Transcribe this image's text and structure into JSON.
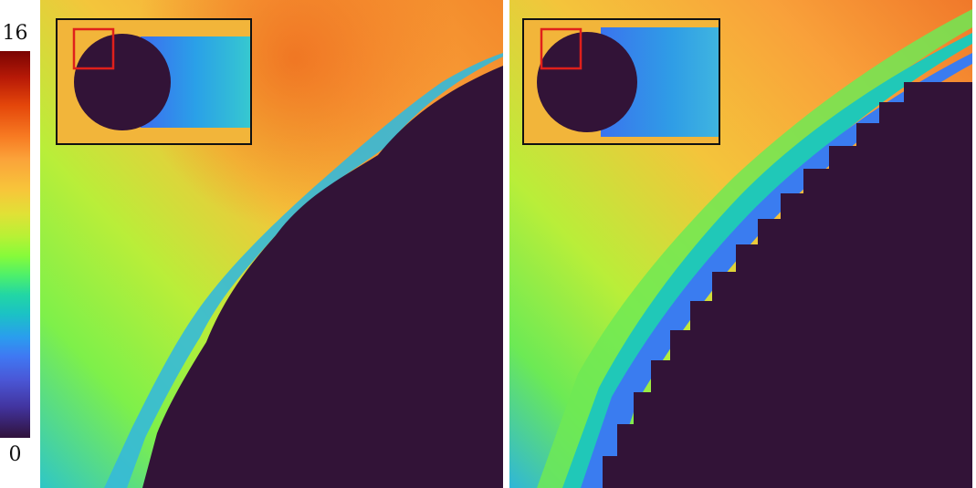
{
  "colorbar": {
    "max_label": "16",
    "min_label": "0"
  },
  "colors": {
    "cylinder": "#321337",
    "inset_frame": "#111111",
    "zoom_box": "#e0201b"
  },
  "panels": [
    {
      "name": "left-flow-field"
    },
    {
      "name": "right-flow-field"
    }
  ]
}
